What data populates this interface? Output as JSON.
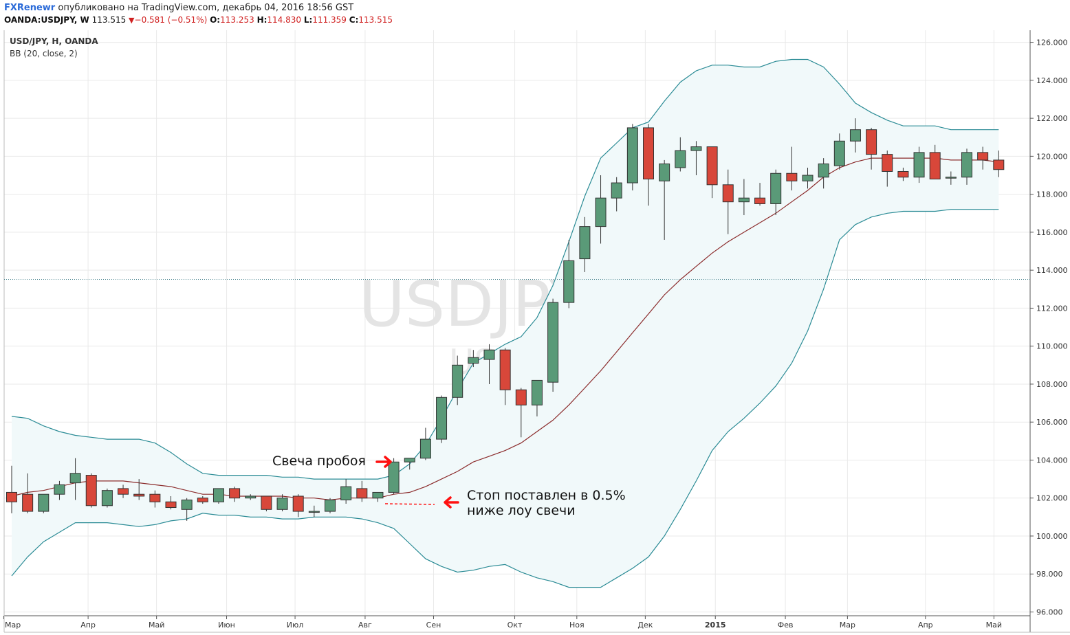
{
  "header": {
    "author": "FXRenewr",
    "published": "опубликовано на TradingView.com, декабрь 04, 2016 18:56 GST",
    "symbol": "OANDA:USDJPY, W",
    "last": "113.515",
    "change": "−0.581 (−0.51%)",
    "open_label": "O:",
    "open": "113.253",
    "high_label": "H:",
    "high": "114.830",
    "low_label": "L:",
    "low": "111.359",
    "close_label": "C:",
    "close": "113.515"
  },
  "pane": {
    "symbol_label": "USD/JPY, H, OANDA",
    "indicator_label": "BB (20, close, 2)",
    "watermark_main": "USDJPY, H",
    "watermark_sub": "USD/JPY"
  },
  "annotations": {
    "breakout": "Свеча пробоя",
    "stop_line1": "Стоп поставлен в 0.5%",
    "stop_line2": "ниже лоу свечи"
  },
  "colors": {
    "up": "#5a9a78",
    "down": "#d8473a",
    "upper_band": "#2a8b95",
    "lower_band": "#2a8b95",
    "basis": "#8b2b2b",
    "band_fill": "#f1f9fa",
    "price_line": "#3a7a85",
    "annotation_arrow": "#ff1010"
  },
  "chart_data": {
    "type": "candlestick",
    "ylim": [
      96,
      126.5
    ],
    "yticks": [
      "96.000",
      "98.000",
      "100.000",
      "102.000",
      "104.000",
      "106.000",
      "108.000",
      "110.000",
      "112.000",
      "114.000",
      "116.000",
      "118.000",
      "120.000",
      "122.000",
      "124.000",
      "126.000"
    ],
    "xticks": [
      {
        "label": "Мар",
        "i": -0.5
      },
      {
        "label": "Апр",
        "i": 4.8
      },
      {
        "label": "Май",
        "i": 9.1
      },
      {
        "label": "Июн",
        "i": 13.5
      },
      {
        "label": "Июл",
        "i": 17.8
      },
      {
        "label": "Авг",
        "i": 22.2
      },
      {
        "label": "Сен",
        "i": 26.5
      },
      {
        "label": "Окт",
        "i": 31.6
      },
      {
        "label": "Ноя",
        "i": 35.5
      },
      {
        "label": "Дек",
        "i": 39.8
      },
      {
        "label": "2015",
        "i": 44.2
      },
      {
        "label": "Фев",
        "i": 48.6
      },
      {
        "label": "Мар",
        "i": 52.5
      },
      {
        "label": "Апр",
        "i": 57.4
      },
      {
        "label": "Май",
        "i": 61.7
      }
    ],
    "candles": [
      [
        102.3,
        103.7,
        101.2,
        101.8
      ],
      [
        102.2,
        103.3,
        101.2,
        101.3
      ],
      [
        101.3,
        102.2,
        101.2,
        102.2
      ],
      [
        102.2,
        102.9,
        101.9,
        102.7
      ],
      [
        102.8,
        104.1,
        101.9,
        103.3
      ],
      [
        103.2,
        103.3,
        101.5,
        101.6
      ],
      [
        101.6,
        102.5,
        101.5,
        102.4
      ],
      [
        102.5,
        102.7,
        102.0,
        102.2
      ],
      [
        102.2,
        103.0,
        101.9,
        102.1
      ],
      [
        102.2,
        102.4,
        101.5,
        101.8
      ],
      [
        101.8,
        102.1,
        101.4,
        101.5
      ],
      [
        101.4,
        102.0,
        100.8,
        101.9
      ],
      [
        102.0,
        102.1,
        101.7,
        101.8
      ],
      [
        101.8,
        102.4,
        101.7,
        102.5
      ],
      [
        102.5,
        102.6,
        101.8,
        102.0
      ],
      [
        102.0,
        102.2,
        101.9,
        102.1
      ],
      [
        102.1,
        102.1,
        101.3,
        101.4
      ],
      [
        101.4,
        102.2,
        101.3,
        102.0
      ],
      [
        102.1,
        102.2,
        101.0,
        101.3
      ],
      [
        101.3,
        101.6,
        101.0,
        101.3
      ],
      [
        101.3,
        102.0,
        101.2,
        101.9
      ],
      [
        101.9,
        103.0,
        101.7,
        102.6
      ],
      [
        102.5,
        102.9,
        101.8,
        102.0
      ],
      [
        102.0,
        102.3,
        101.8,
        102.3
      ],
      [
        102.3,
        104.1,
        102.2,
        103.9
      ],
      [
        103.9,
        104.1,
        103.5,
        104.1
      ],
      [
        104.1,
        105.7,
        104.0,
        105.1
      ],
      [
        105.1,
        107.4,
        104.9,
        107.3
      ],
      [
        107.3,
        109.5,
        106.9,
        109.0
      ],
      [
        109.1,
        109.8,
        108.9,
        109.4
      ],
      [
        109.3,
        110.1,
        108.0,
        109.8
      ],
      [
        109.8,
        109.9,
        106.9,
        107.7
      ],
      [
        107.7,
        107.8,
        105.2,
        106.9
      ],
      [
        106.9,
        108.2,
        106.3,
        108.2
      ],
      [
        108.1,
        112.5,
        107.6,
        112.3
      ],
      [
        112.3,
        115.6,
        112.0,
        114.5
      ],
      [
        114.6,
        116.8,
        113.9,
        116.3
      ],
      [
        116.3,
        119.0,
        115.4,
        117.8
      ],
      [
        117.8,
        118.9,
        117.1,
        118.6
      ],
      [
        118.6,
        121.7,
        118.2,
        121.5
      ],
      [
        121.5,
        121.7,
        117.4,
        118.8
      ],
      [
        118.7,
        119.8,
        115.6,
        119.6
      ],
      [
        119.4,
        121.0,
        119.2,
        120.3
      ],
      [
        120.3,
        120.8,
        119.0,
        120.5
      ],
      [
        120.5,
        120.5,
        117.8,
        118.5
      ],
      [
        118.5,
        119.3,
        115.9,
        117.6
      ],
      [
        117.6,
        118.8,
        116.9,
        117.8
      ],
      [
        117.8,
        118.6,
        117.4,
        117.5
      ],
      [
        117.5,
        119.3,
        116.9,
        119.1
      ],
      [
        119.1,
        120.5,
        118.2,
        118.7
      ],
      [
        118.7,
        119.4,
        118.3,
        119.0
      ],
      [
        118.9,
        119.9,
        118.3,
        119.6
      ],
      [
        119.5,
        121.2,
        119.3,
        120.8
      ],
      [
        120.8,
        122.0,
        120.2,
        121.4
      ],
      [
        121.4,
        121.5,
        119.3,
        120.1
      ],
      [
        120.1,
        120.3,
        118.4,
        119.2
      ],
      [
        119.2,
        119.4,
        118.7,
        118.9
      ],
      [
        118.9,
        120.5,
        118.6,
        120.2
      ],
      [
        120.2,
        120.6,
        118.8,
        118.8
      ],
      [
        118.9,
        119.2,
        118.5,
        118.9
      ],
      [
        118.9,
        120.4,
        118.5,
        120.2
      ],
      [
        120.2,
        120.5,
        119.3,
        119.8
      ],
      [
        119.8,
        120.3,
        118.9,
        119.3
      ]
    ],
    "upper_band": [
      106.3,
      106.2,
      105.8,
      105.5,
      105.3,
      105.2,
      105.1,
      105.1,
      105.1,
      104.9,
      104.4,
      103.8,
      103.3,
      103.2,
      103.2,
      103.2,
      103.2,
      103.1,
      103.1,
      103.0,
      103.0,
      103.0,
      103.0,
      103.0,
      103.2,
      103.8,
      104.8,
      106.2,
      107.7,
      109.1,
      109.6,
      110.1,
      110.5,
      111.5,
      113.2,
      115.5,
      117.9,
      119.9,
      120.7,
      121.5,
      121.8,
      122.9,
      123.9,
      124.5,
      124.8,
      124.8,
      124.7,
      124.7,
      125.0,
      125.1,
      125.1,
      124.7,
      123.8,
      122.8,
      122.3,
      121.9,
      121.6,
      121.6,
      121.6,
      121.4,
      121.4,
      121.4,
      121.4
    ],
    "basis": [
      102.1,
      102.3,
      102.4,
      102.6,
      102.8,
      102.9,
      102.9,
      102.9,
      102.8,
      102.7,
      102.6,
      102.4,
      102.2,
      102.2,
      102.1,
      102.1,
      102.1,
      102.1,
      102.0,
      102.0,
      101.9,
      102.0,
      102.0,
      102.0,
      102.2,
      102.3,
      102.6,
      103.0,
      103.4,
      103.9,
      104.2,
      104.5,
      104.9,
      105.5,
      106.1,
      106.9,
      107.8,
      108.7,
      109.7,
      110.7,
      111.7,
      112.7,
      113.5,
      114.2,
      114.9,
      115.5,
      116.0,
      116.5,
      117.0,
      117.6,
      118.2,
      118.9,
      119.4,
      119.7,
      119.9,
      119.9,
      119.9,
      119.9,
      119.9,
      119.8,
      119.8,
      119.8,
      119.7
    ],
    "lower_band": [
      97.9,
      98.9,
      99.7,
      100.2,
      100.7,
      100.7,
      100.7,
      100.6,
      100.5,
      100.6,
      100.8,
      100.9,
      101.2,
      101.1,
      101.1,
      101.0,
      101.0,
      100.9,
      100.9,
      101.0,
      101.0,
      101.0,
      100.9,
      100.7,
      100.4,
      99.6,
      98.8,
      98.4,
      98.1,
      98.2,
      98.4,
      98.5,
      98.1,
      97.8,
      97.6,
      97.3,
      97.3,
      97.3,
      97.8,
      98.3,
      98.9,
      100.0,
      101.4,
      102.9,
      104.5,
      105.5,
      106.2,
      107.0,
      107.9,
      109.1,
      110.8,
      113.0,
      115.6,
      116.4,
      116.8,
      117.0,
      117.1,
      117.1,
      117.1,
      117.2,
      117.2,
      117.2,
      117.2
    ],
    "last_price": 113.515
  }
}
